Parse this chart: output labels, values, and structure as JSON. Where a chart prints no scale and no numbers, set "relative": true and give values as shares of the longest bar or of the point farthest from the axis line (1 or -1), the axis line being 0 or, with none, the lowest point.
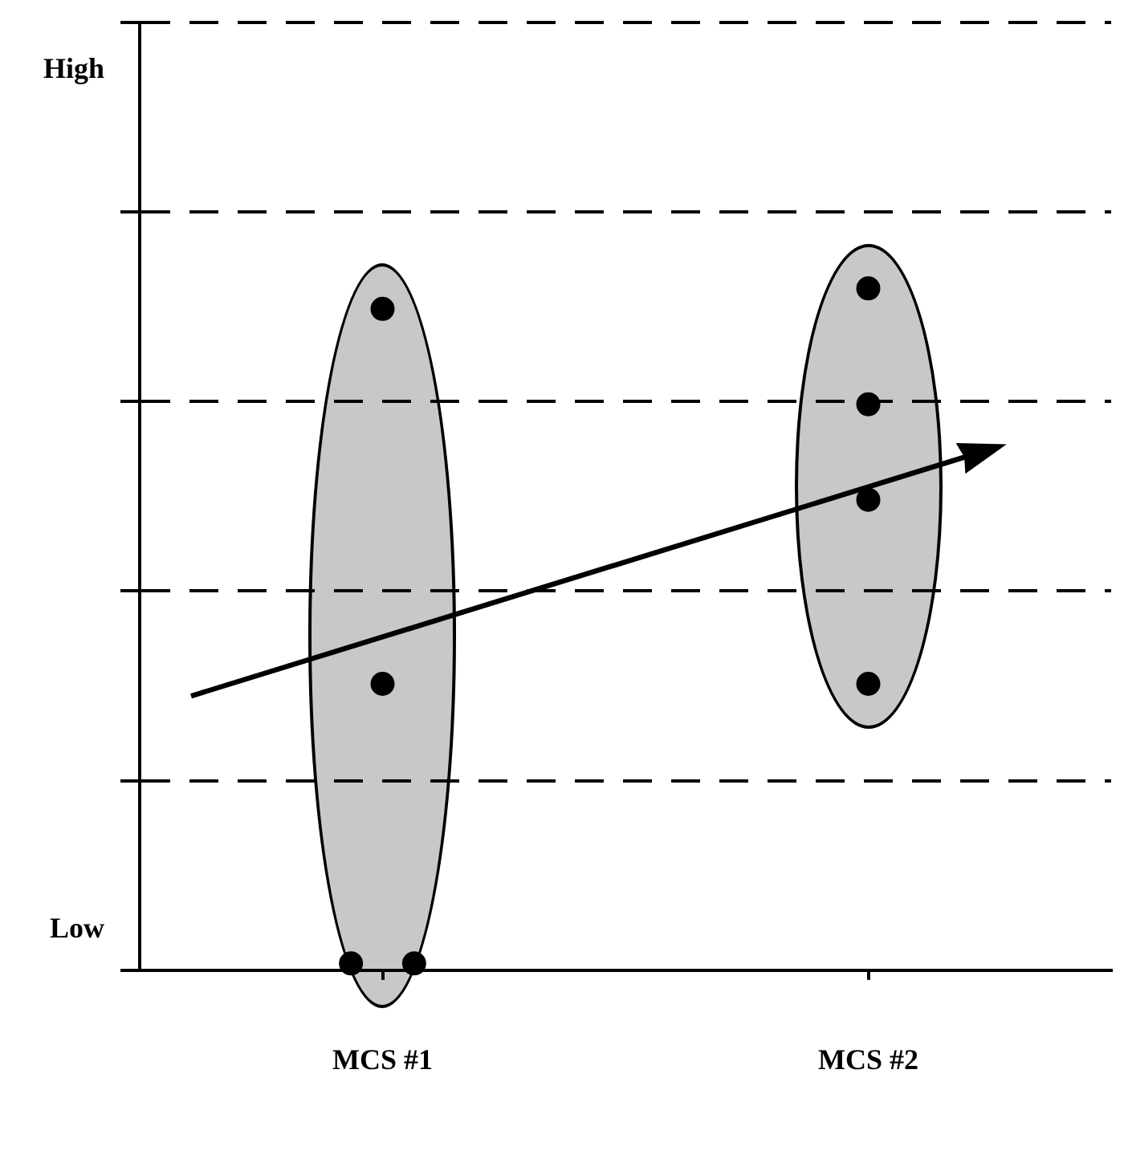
{
  "chart_data": {
    "type": "scatter",
    "categories": [
      "MCS #1",
      "MCS #2"
    ],
    "series": [
      {
        "x": [
          "MCS #1",
          "MCS #1",
          "MCS #1",
          "MCS #1",
          "MCS #2",
          "MCS #2",
          "MCS #2",
          "MCS #2"
        ],
        "values": [
          0.97,
          0.42,
          0.01,
          0.01,
          1,
          0.83,
          0.69,
          0.42
        ],
        "color": "#000000"
      }
    ],
    "relative": true,
    "annotations": [
      "High",
      "Low"
    ],
    "grid": "y",
    "marker": "circle"
  }
}
